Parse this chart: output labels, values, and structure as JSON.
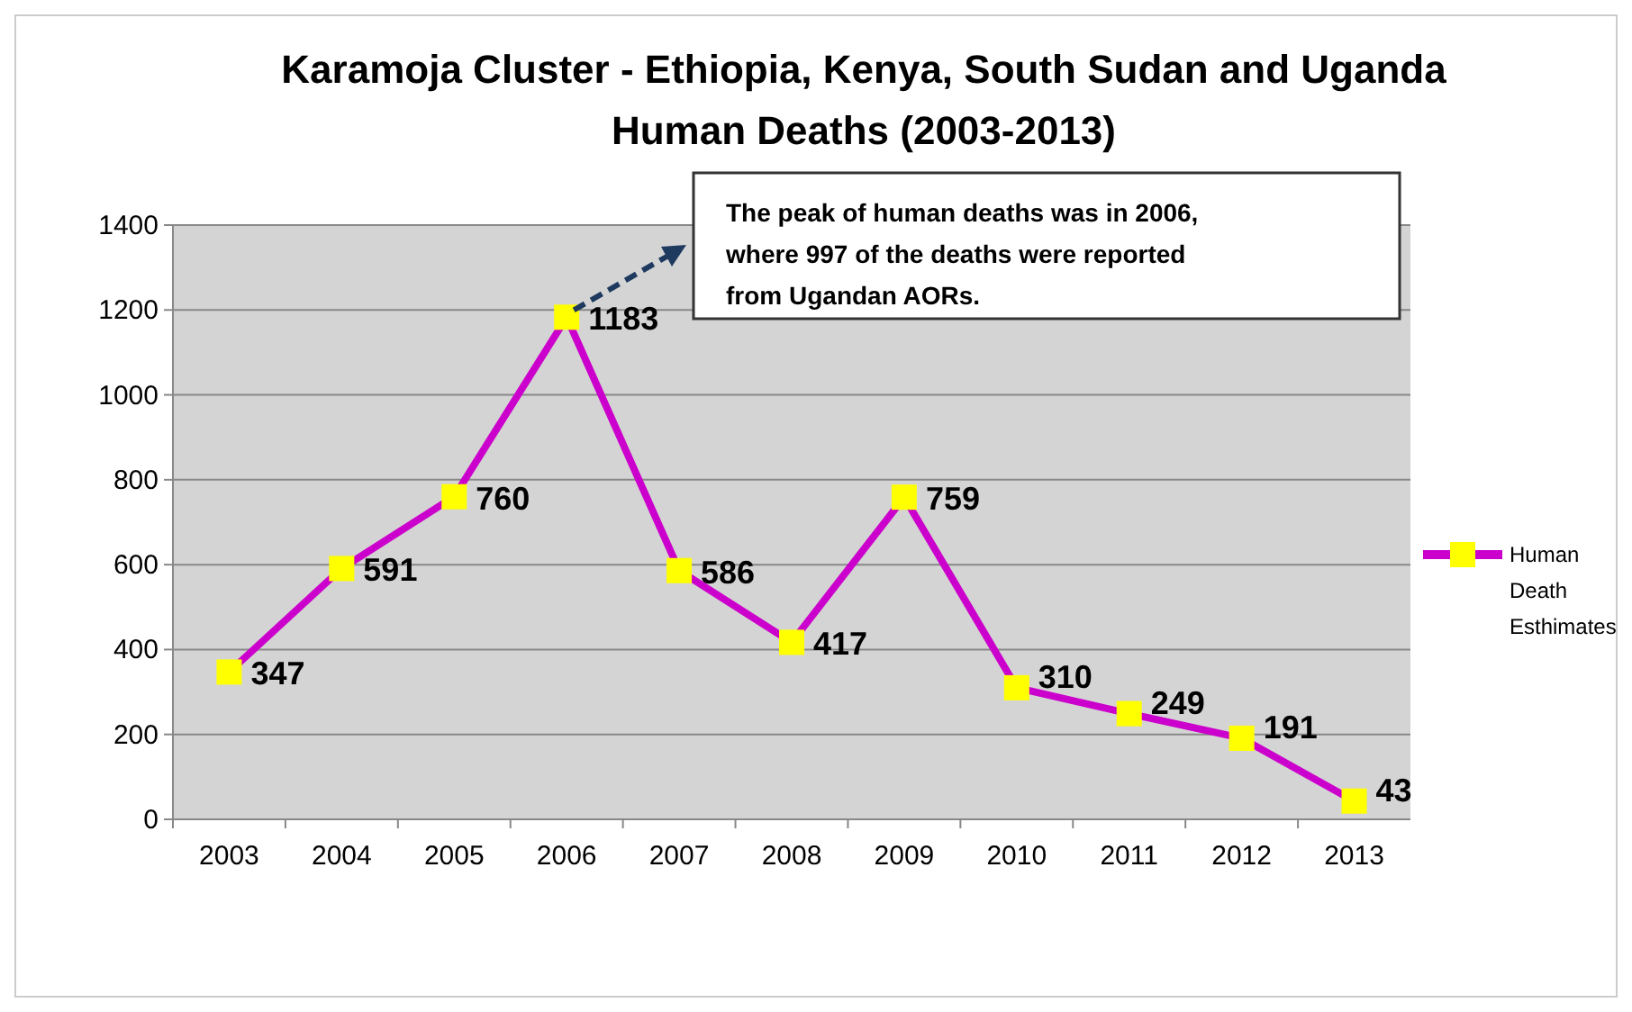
{
  "chart_data": {
    "type": "line",
    "title": "Karamoja Cluster - Ethiopia, Kenya, South Sudan and Uganda",
    "subtitle": "Human Deaths (2003-2013)",
    "categories": [
      "2003",
      "2004",
      "2005",
      "2006",
      "2007",
      "2008",
      "2009",
      "2010",
      "2011",
      "2012",
      "2013"
    ],
    "series": [
      {
        "name": "Human Death Esthimates",
        "color": "#cc00cc",
        "values": [
          347,
          591,
          760,
          1183,
          586,
          417,
          759,
          310,
          249,
          191,
          43
        ]
      }
    ],
    "ylim": [
      0,
      1400
    ],
    "yticks": [
      0,
      200,
      400,
      600,
      800,
      1000,
      1200,
      1400
    ],
    "grid": "y",
    "legend": "right",
    "marker": "square",
    "data_labels": true,
    "annotations": [
      "The peak of human deaths was in 2006, where 997 of the deaths were reported from Ugandan AORs."
    ]
  }
}
